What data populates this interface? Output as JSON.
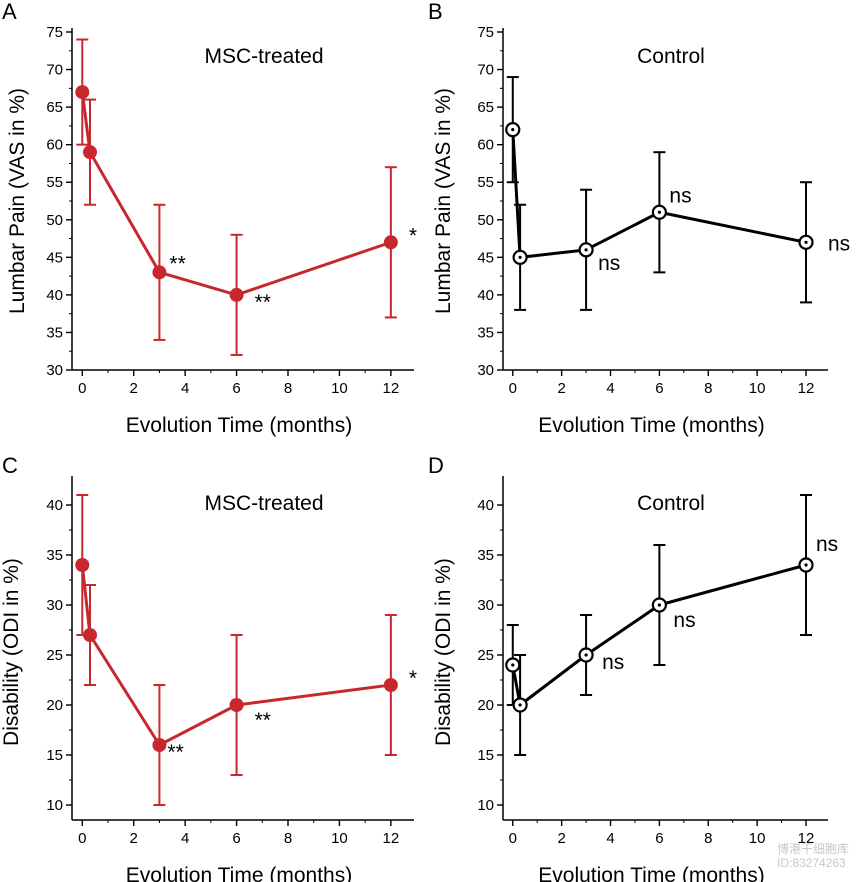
{
  "chart_data": [
    {
      "panel": "A",
      "type": "line",
      "title": "MSC-treated",
      "xlabel": "Evolution Time (months)",
      "ylabel": "Lumbar Pain (VAS in %)",
      "xlim": [
        -0.4,
        12.9
      ],
      "ylim": [
        30,
        75
      ],
      "xticks": [
        0,
        2,
        4,
        6,
        8,
        10,
        12
      ],
      "yticks": [
        30,
        35,
        40,
        45,
        50,
        55,
        60,
        65,
        70,
        75
      ],
      "grid": false,
      "series": [
        {
          "name": "MSC-treated",
          "color": "#c8282d",
          "marker": "filled-circle",
          "x": [
            0,
            0.3,
            3,
            6,
            12
          ],
          "y": [
            67,
            59,
            43,
            40,
            47
          ],
          "err_low": [
            60,
            52,
            34,
            32,
            37
          ],
          "err_high": [
            74,
            66,
            52,
            48,
            57
          ]
        }
      ],
      "annotations": [
        {
          "text": "",
          "x": 0,
          "y": 67
        },
        {
          "text": "",
          "x": 0.3,
          "y": 59
        },
        {
          "text": "**",
          "x": 3,
          "y": 43
        },
        {
          "text": "**",
          "x": 6,
          "y": 40
        },
        {
          "text": "*",
          "x": 12,
          "y": 47
        }
      ]
    },
    {
      "panel": "B",
      "type": "line",
      "title": "Control",
      "xlabel": "Evolution Time (months)",
      "ylabel": "Lumbar Pain (VAS in %)",
      "xlim": [
        -0.4,
        12.9
      ],
      "ylim": [
        30,
        75
      ],
      "xticks": [
        0,
        2,
        4,
        6,
        8,
        10,
        12
      ],
      "yticks": [
        30,
        35,
        40,
        45,
        50,
        55,
        60,
        65,
        70,
        75
      ],
      "grid": false,
      "series": [
        {
          "name": "Control",
          "color": "#000000",
          "marker": "open-circle-dot",
          "x": [
            0,
            0.3,
            3,
            6,
            12
          ],
          "y": [
            62,
            45,
            46,
            51,
            47
          ],
          "err_low": [
            55,
            38,
            38,
            43,
            39
          ],
          "err_high": [
            69,
            52,
            54,
            59,
            55
          ]
        }
      ],
      "annotations": [
        {
          "text": "",
          "x": 0,
          "y": 62
        },
        {
          "text": "",
          "x": 0.3,
          "y": 45
        },
        {
          "text": "ns",
          "x": 3,
          "y": 46
        },
        {
          "text": "ns",
          "x": 6,
          "y": 51
        },
        {
          "text": "ns",
          "x": 12,
          "y": 47
        }
      ]
    },
    {
      "panel": "C",
      "type": "line",
      "title": "MSC-treated",
      "xlabel": "Evolution Time (months)",
      "ylabel": "Disability (ODI in %)",
      "xlim": [
        -0.4,
        12.9
      ],
      "ylim": [
        8.5,
        42.5
      ],
      "xticks": [
        0,
        2,
        4,
        6,
        8,
        10,
        12
      ],
      "yticks": [
        10,
        15,
        20,
        25,
        30,
        35,
        40
      ],
      "grid": false,
      "series": [
        {
          "name": "MSC-treated",
          "color": "#c8282d",
          "marker": "filled-circle",
          "x": [
            0,
            0.3,
            3,
            6,
            12
          ],
          "y": [
            34,
            27,
            16,
            20,
            22
          ],
          "err_low": [
            27,
            22,
            10,
            13,
            15
          ],
          "err_high": [
            41,
            32,
            22,
            27,
            29
          ]
        }
      ],
      "annotations": [
        {
          "text": "",
          "x": 0,
          "y": 34
        },
        {
          "text": "",
          "x": 0.3,
          "y": 27
        },
        {
          "text": "**",
          "x": 3,
          "y": 16
        },
        {
          "text": "**",
          "x": 6,
          "y": 20
        },
        {
          "text": "*",
          "x": 12,
          "y": 22
        }
      ]
    },
    {
      "panel": "D",
      "type": "line",
      "title": "Control",
      "xlabel": "Evolution Time (months)",
      "ylabel": "Disability (ODI in %)",
      "xlim": [
        -0.4,
        12.9
      ],
      "ylim": [
        8.5,
        42.5
      ],
      "xticks": [
        0,
        2,
        4,
        6,
        8,
        10,
        12
      ],
      "yticks": [
        10,
        15,
        20,
        25,
        30,
        35,
        40
      ],
      "grid": false,
      "series": [
        {
          "name": "Control",
          "color": "#000000",
          "marker": "open-circle-dot",
          "x": [
            0,
            0.3,
            3,
            6,
            12
          ],
          "y": [
            24,
            20,
            25,
            30,
            34
          ],
          "err_low": [
            20,
            15,
            21,
            24,
            27
          ],
          "err_high": [
            28,
            25,
            29,
            36,
            41
          ]
        }
      ],
      "annotations": [
        {
          "text": "",
          "x": 0,
          "y": 24
        },
        {
          "text": "",
          "x": 0.3,
          "y": 20
        },
        {
          "text": "ns",
          "x": 3,
          "y": 25
        },
        {
          "text": "ns",
          "x": 6,
          "y": 30
        },
        {
          "text": "ns",
          "x": 12,
          "y": 34
        }
      ]
    }
  ],
  "watermark": {
    "line1": "博港干细胞库",
    "line2": "ID:83274263"
  }
}
